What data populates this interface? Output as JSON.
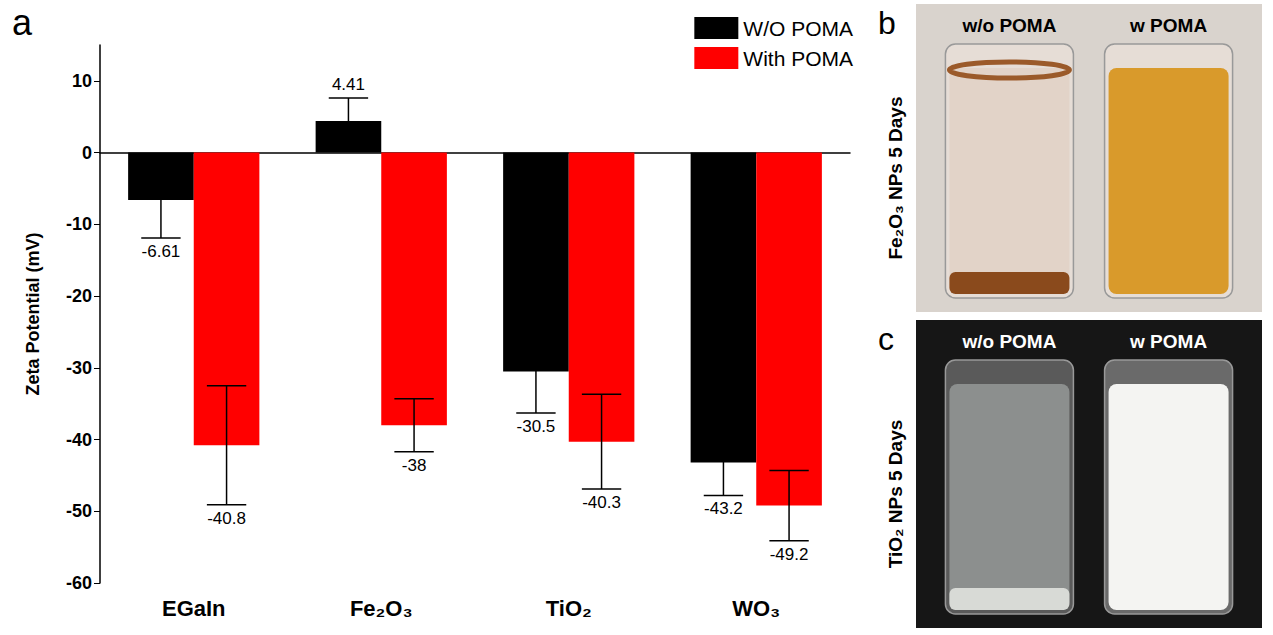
{
  "panel_labels": [
    "a",
    "b",
    "c"
  ],
  "chart_data": {
    "type": "bar",
    "categories": [
      "EGaIn",
      "Fe₂O₃",
      "TiO₂",
      "WO₃"
    ],
    "y_label": "Zeta Potential (mV)",
    "series": [
      {
        "name": "W/O POMA",
        "color": "#000000",
        "values": [
          -6.61,
          4.41,
          -30.5,
          -43.2
        ],
        "errors": [
          5.3,
          3.2,
          5.8,
          4.6
        ]
      },
      {
        "name": "With POMA",
        "color": "#ff0000",
        "values": [
          -40.8,
          -38,
          -40.3,
          -49.2
        ],
        "errors": [
          8.3,
          3.7,
          6.6,
          4.9
        ]
      }
    ],
    "ylim": [
      -60,
      15
    ],
    "yticks": [
      -60,
      -50,
      -40,
      -30,
      -20,
      -10,
      0,
      10
    ],
    "grid": false,
    "legend": "upper right",
    "data_labels": true
  },
  "photos": [
    {
      "side_label": "Fe₂O₃ NPs 5 Days",
      "vial_labels": [
        "w/o POMA",
        "w POMA"
      ]
    },
    {
      "side_label": "TiO₂ NPs 5 Days",
      "vial_labels": [
        "w/o POMA",
        "w POMA"
      ]
    }
  ]
}
